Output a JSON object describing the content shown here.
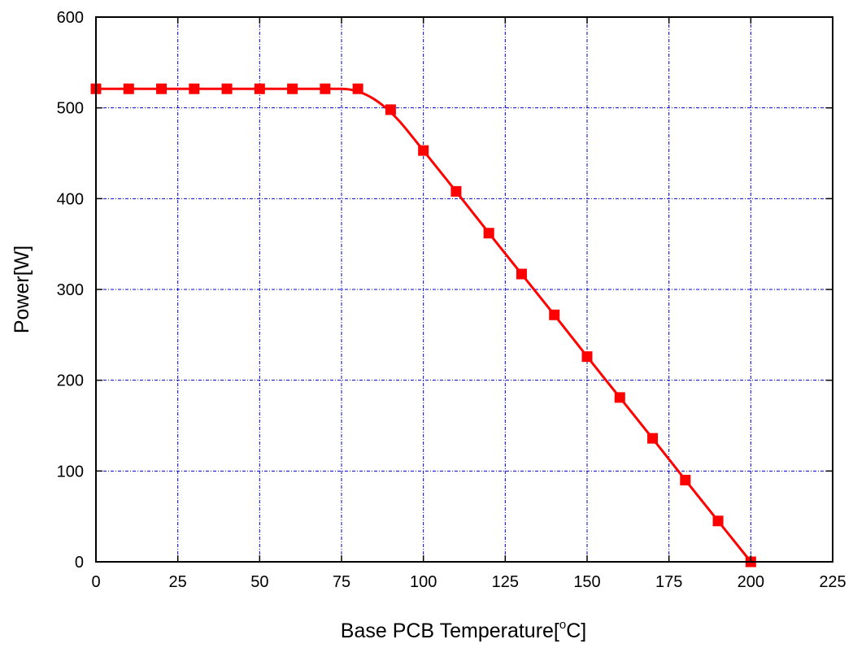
{
  "chart_data": {
    "type": "line",
    "title": "",
    "xlabel": "Base PCB Temperature[",
    "xlabel_superscript": "o",
    "xlabel_suffix": "C]",
    "ylabel": "Power[W]",
    "xlim": [
      0,
      225
    ],
    "ylim": [
      0,
      600
    ],
    "xticks": [
      0,
      25,
      50,
      75,
      100,
      125,
      150,
      175,
      200,
      225
    ],
    "yticks": [
      0,
      100,
      200,
      300,
      400,
      500,
      600
    ],
    "grid": true,
    "legend": "none",
    "series": [
      {
        "color": "#ff0000",
        "marker": "square",
        "x": [
          0,
          10,
          20,
          30,
          40,
          50,
          60,
          70,
          80,
          90,
          100,
          110,
          120,
          130,
          140,
          150,
          160,
          170,
          180,
          190,
          200
        ],
        "y": [
          521,
          521,
          521,
          521,
          521,
          521,
          521,
          521,
          521,
          498,
          453,
          408,
          362,
          317,
          272,
          226,
          181,
          136,
          90,
          45,
          0
        ]
      }
    ],
    "colors": {
      "grid": "#0000cc",
      "axis": "#000000",
      "series": "#ff0000"
    }
  }
}
